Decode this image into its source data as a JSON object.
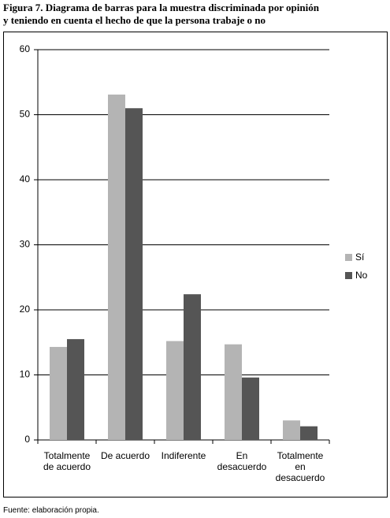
{
  "title": [
    "Figura 7. Diagrama de barras para la muestra discriminada por opinión",
    "y teniendo en cuenta el hecho de que la persona trabaje o no"
  ],
  "chart_data": {
    "type": "bar",
    "categories": [
      "Totalmente de acuerdo",
      "De acuerdo",
      "Indiferente",
      "En desacuerdo",
      "Totalmente en desacuerdo"
    ],
    "series": [
      {
        "name": "Sí",
        "color": "#b4b4b4",
        "values": [
          14.3,
          53.1,
          15.2,
          14.7,
          3.0
        ]
      },
      {
        "name": "No",
        "color": "#555555",
        "values": [
          15.5,
          51.0,
          22.4,
          9.6,
          2.1
        ]
      }
    ],
    "ylim": [
      0,
      60
    ],
    "yticks": [
      0,
      10,
      20,
      30,
      40,
      50,
      60
    ],
    "grid": true,
    "legend": "right"
  },
  "source": "Fuente: elaboración propia."
}
